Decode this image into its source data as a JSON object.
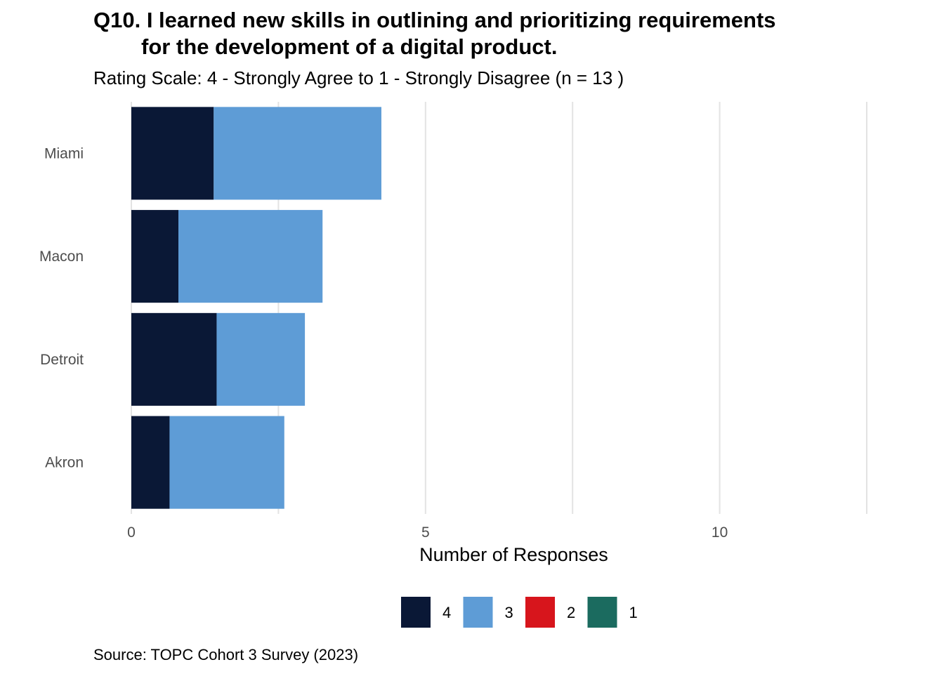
{
  "chart_data": {
    "type": "bar",
    "orientation": "horizontal",
    "stacked": true,
    "title_line1": "Q10. I learned new skills in outlining and prioritizing requirements",
    "title_line2": "for the development of a digital product.",
    "subtitle": "Rating Scale: 4 - Strongly Agree to 1 - Strongly Disagree (n = 13 )",
    "caption": "Source: TOPC Cohort 3 Survey (2023)",
    "xlabel": "Number of Responses",
    "ylabel": "",
    "categories": [
      "Miami",
      "Macon",
      "Detroit",
      "Akron"
    ],
    "series": [
      {
        "name": "4",
        "color": "#0a1836",
        "values": [
          1.4,
          0.8,
          1.45,
          0.65
        ]
      },
      {
        "name": "3",
        "color": "#5e9cd6",
        "values": [
          2.85,
          2.45,
          1.5,
          1.95
        ]
      },
      {
        "name": "2",
        "color": "#d7151c",
        "values": [
          0,
          0,
          0,
          0
        ]
      },
      {
        "name": "1",
        "color": "#1b6b5f",
        "values": [
          0,
          0,
          0,
          0
        ]
      }
    ],
    "xlim": [
      0,
      12.5
    ],
    "xticks": [
      "0",
      "5",
      "10"
    ],
    "xtick_values": [
      0,
      5,
      10
    ],
    "grid": true,
    "legend_position": "bottom"
  }
}
